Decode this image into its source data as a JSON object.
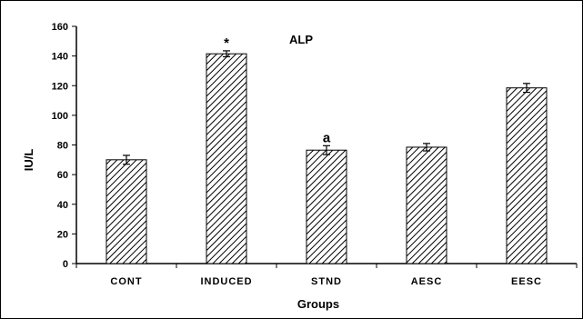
{
  "chart_data": {
    "type": "bar",
    "title": "ALP",
    "xlabel": "Groups",
    "ylabel": "IU/L",
    "categories": [
      "CONT",
      "INDUCED",
      "STND",
      "AESC",
      "EESC"
    ],
    "values": [
      70,
      141.5,
      76.5,
      78.5,
      118.5
    ],
    "errors": [
      3,
      2,
      3,
      2.5,
      3
    ],
    "annotations": [
      "",
      "*",
      "a",
      "",
      ""
    ],
    "ylim": [
      0,
      160
    ],
    "yticks": [
      0,
      20,
      40,
      60,
      80,
      100,
      120,
      140,
      160
    ],
    "grid": false,
    "legend": "none",
    "bar_fill": "hatched"
  }
}
